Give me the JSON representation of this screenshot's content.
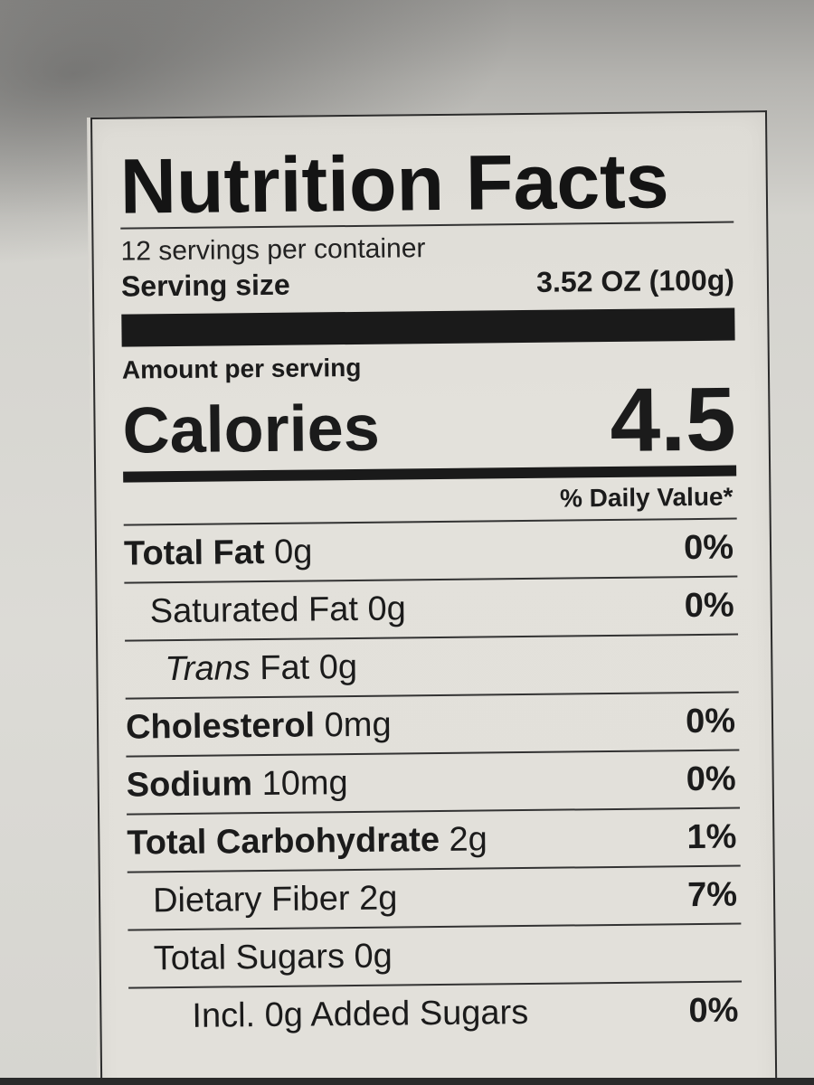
{
  "label": {
    "title": "Nutrition Facts",
    "servings_per_container": "12 servings per container",
    "serving_size_label": "Serving size",
    "serving_size_value": "3.52 OZ (100g)",
    "amount_per_serving": "Amount per serving",
    "calories_label": "Calories",
    "calories_value": "4.5",
    "daily_value_header": "% Daily Value*",
    "nutrients": [
      {
        "name": "Total Fat",
        "amount": "0g",
        "dv": "0%"
      },
      {
        "name": "Saturated Fat",
        "amount": "0g",
        "dv": "0%"
      },
      {
        "name_italic": "Trans",
        "name": "Fat",
        "amount": "0g",
        "dv": ""
      },
      {
        "name": "Cholesterol",
        "amount": "0mg",
        "dv": "0%"
      },
      {
        "name": "Sodium",
        "amount": "10mg",
        "dv": "0%"
      },
      {
        "name": "Total Carbohydrate",
        "amount": "2g",
        "dv": "1%"
      },
      {
        "name": "Dietary Fiber",
        "amount": "2g",
        "dv": "7%"
      },
      {
        "name": "Total Sugars",
        "amount": "0g",
        "dv": ""
      },
      {
        "name": "Incl. 0g Added Sugars",
        "amount": "",
        "dv": "0%"
      }
    ]
  },
  "colors": {
    "ink": "#1b1b1b",
    "paper": "#e2e0da",
    "background": "#d9d8d3"
  }
}
